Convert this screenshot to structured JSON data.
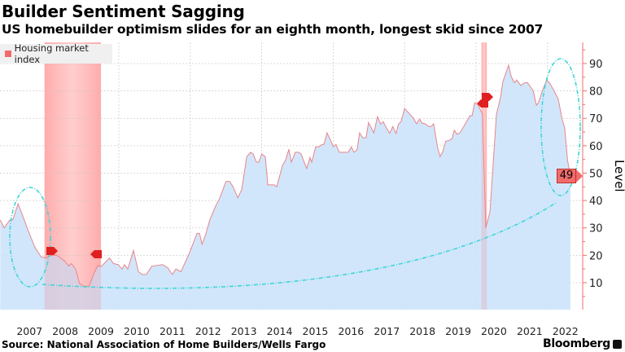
{
  "title": "Builder Sentiment Sagging",
  "subtitle": "US homebuilder optimism slides for an eighth month, longest skid since 2007",
  "source": "Source: National Association of Home Builders/Wells Fargo",
  "brand": "Bloomberg",
  "chart_data": {
    "type": "area",
    "title": "Builder Sentiment Sagging",
    "subtitle": "US homebuilder optimism slides for an eighth month, longest skid since 2007",
    "ylabel": "Level",
    "xlabel": "",
    "ylim": [
      0,
      97
    ],
    "xlim": [
      2006.68,
      2022.7
    ],
    "y_axis_position": "right",
    "yticks": [
      10,
      20,
      30,
      40,
      50,
      60,
      70,
      80,
      90
    ],
    "xticks": [
      "2007",
      "2008",
      "2009",
      "2010",
      "2011",
      "2012",
      "2013",
      "2014",
      "2015",
      "2016",
      "2017",
      "2018",
      "2019",
      "2020",
      "2021",
      "2022"
    ],
    "grid": true,
    "legend": {
      "position": "top-left",
      "entries": [
        "Housing market index"
      ]
    },
    "current_value_label": "49",
    "colors": {
      "line": "#e8868a",
      "fill": "#cce3fb",
      "recession": "#ff8a8a",
      "annotation": "#3fd6d6",
      "axis": "#f26b6b"
    },
    "recessions": [
      [
        2007.92,
        2009.5
      ],
      [
        2020.15,
        2020.3
      ]
    ],
    "series": [
      {
        "name": "Housing market index",
        "points": [
          [
            2006.68,
            32.9
          ],
          [
            2006.79,
            30
          ],
          [
            2006.95,
            32.9
          ],
          [
            2007.03,
            32.9
          ],
          [
            2007.18,
            38.8
          ],
          [
            2007.3,
            34.8
          ],
          [
            2007.44,
            29.8
          ],
          [
            2007.65,
            23
          ],
          [
            2007.82,
            19.5
          ],
          [
            2007.97,
            19
          ],
          [
            2008.1,
            20
          ],
          [
            2008.26,
            20
          ],
          [
            2008.48,
            18
          ],
          [
            2008.6,
            16.1
          ],
          [
            2008.67,
            17
          ],
          [
            2008.79,
            15
          ],
          [
            2008.9,
            9.7
          ],
          [
            2009.02,
            8.7
          ],
          [
            2009.17,
            8.7
          ],
          [
            2009.28,
            12.7
          ],
          [
            2009.4,
            16
          ],
          [
            2009.51,
            16
          ],
          [
            2009.74,
            19
          ],
          [
            2009.85,
            17
          ],
          [
            2009.98,
            16.6
          ],
          [
            2010.09,
            15
          ],
          [
            2010.16,
            16.6
          ],
          [
            2010.25,
            15
          ],
          [
            2010.41,
            21.8
          ],
          [
            2010.55,
            14
          ],
          [
            2010.66,
            13
          ],
          [
            2010.77,
            13
          ],
          [
            2010.92,
            16
          ],
          [
            2011.22,
            16.6
          ],
          [
            2011.37,
            15.5
          ],
          [
            2011.5,
            13
          ],
          [
            2011.6,
            15
          ],
          [
            2011.74,
            14
          ],
          [
            2011.98,
            21
          ],
          [
            2012.19,
            28
          ],
          [
            2012.26,
            28
          ],
          [
            2012.33,
            24
          ],
          [
            2012.44,
            28
          ],
          [
            2012.55,
            33
          ],
          [
            2012.71,
            38
          ],
          [
            2012.83,
            41
          ],
          [
            2013.0,
            47
          ],
          [
            2013.1,
            47
          ],
          [
            2013.2,
            45
          ],
          [
            2013.33,
            41
          ],
          [
            2013.44,
            44
          ],
          [
            2013.58,
            56
          ],
          [
            2013.69,
            57.6
          ],
          [
            2013.76,
            57
          ],
          [
            2013.85,
            54
          ],
          [
            2013.92,
            54
          ],
          [
            2014.0,
            57
          ],
          [
            2014.1,
            56
          ],
          [
            2014.17,
            45.7
          ],
          [
            2014.35,
            45.7
          ],
          [
            2014.42,
            45
          ],
          [
            2014.58,
            52.8
          ],
          [
            2014.67,
            54.8
          ],
          [
            2014.76,
            58.7
          ],
          [
            2014.83,
            54
          ],
          [
            2014.94,
            57.6
          ],
          [
            2015.03,
            57.6
          ],
          [
            2015.1,
            57
          ],
          [
            2015.26,
            51.7
          ],
          [
            2015.35,
            55.7
          ],
          [
            2015.4,
            54
          ],
          [
            2015.51,
            59.6
          ],
          [
            2015.6,
            59.6
          ],
          [
            2015.69,
            60.5
          ],
          [
            2015.74,
            60.5
          ],
          [
            2015.83,
            64.7
          ],
          [
            2016.01,
            59.6
          ],
          [
            2016.08,
            60.5
          ],
          [
            2016.17,
            57.6
          ],
          [
            2016.42,
            57.6
          ],
          [
            2016.51,
            59.6
          ],
          [
            2016.58,
            57.6
          ],
          [
            2016.67,
            58.5
          ],
          [
            2016.74,
            64.7
          ],
          [
            2016.83,
            62.9
          ],
          [
            2016.92,
            62.9
          ],
          [
            2016.99,
            68.5
          ],
          [
            2017.14,
            64.7
          ],
          [
            2017.24,
            70.6
          ],
          [
            2017.33,
            67.9
          ],
          [
            2017.4,
            68.8
          ],
          [
            2017.47,
            67
          ],
          [
            2017.58,
            64.5
          ],
          [
            2017.67,
            67
          ],
          [
            2017.76,
            64.5
          ],
          [
            2017.83,
            67.9
          ],
          [
            2017.9,
            68.8
          ],
          [
            2018.0,
            73.6
          ],
          [
            2018.14,
            71.6
          ],
          [
            2018.25,
            70
          ],
          [
            2018.33,
            68
          ],
          [
            2018.42,
            69.7
          ],
          [
            2018.49,
            68.2
          ],
          [
            2018.58,
            68
          ],
          [
            2018.67,
            67
          ],
          [
            2018.74,
            67
          ],
          [
            2018.81,
            68
          ],
          [
            2018.92,
            59.6
          ],
          [
            2018.99,
            56
          ],
          [
            2019.06,
            57.6
          ],
          [
            2019.15,
            61.6
          ],
          [
            2019.26,
            62
          ],
          [
            2019.33,
            62.7
          ],
          [
            2019.39,
            65.7
          ],
          [
            2019.47,
            64.2
          ],
          [
            2019.55,
            64.7
          ],
          [
            2019.7,
            68
          ],
          [
            2019.83,
            71
          ],
          [
            2019.89,
            71
          ],
          [
            2019.96,
            75.7
          ],
          [
            2020.05,
            75
          ],
          [
            2020.18,
            71.5
          ],
          [
            2020.27,
            30
          ],
          [
            2020.39,
            36
          ],
          [
            2020.57,
            71.5
          ],
          [
            2020.68,
            77.4
          ],
          [
            2020.75,
            83.4
          ],
          [
            2020.91,
            89.4
          ],
          [
            2020.98,
            85.4
          ],
          [
            2021.07,
            83
          ],
          [
            2021.14,
            84
          ],
          [
            2021.25,
            82
          ],
          [
            2021.37,
            83
          ],
          [
            2021.44,
            83
          ],
          [
            2021.6,
            80
          ],
          [
            2021.69,
            74.8
          ],
          [
            2021.75,
            75.8
          ],
          [
            2021.87,
            80.6
          ],
          [
            2021.98,
            84
          ],
          [
            2022.05,
            83
          ],
          [
            2022.16,
            80.6
          ],
          [
            2022.3,
            77
          ],
          [
            2022.41,
            69.6
          ],
          [
            2022.48,
            66.6
          ],
          [
            2022.56,
            54.7
          ],
          [
            2022.64,
            49
          ]
        ]
      }
    ]
  }
}
